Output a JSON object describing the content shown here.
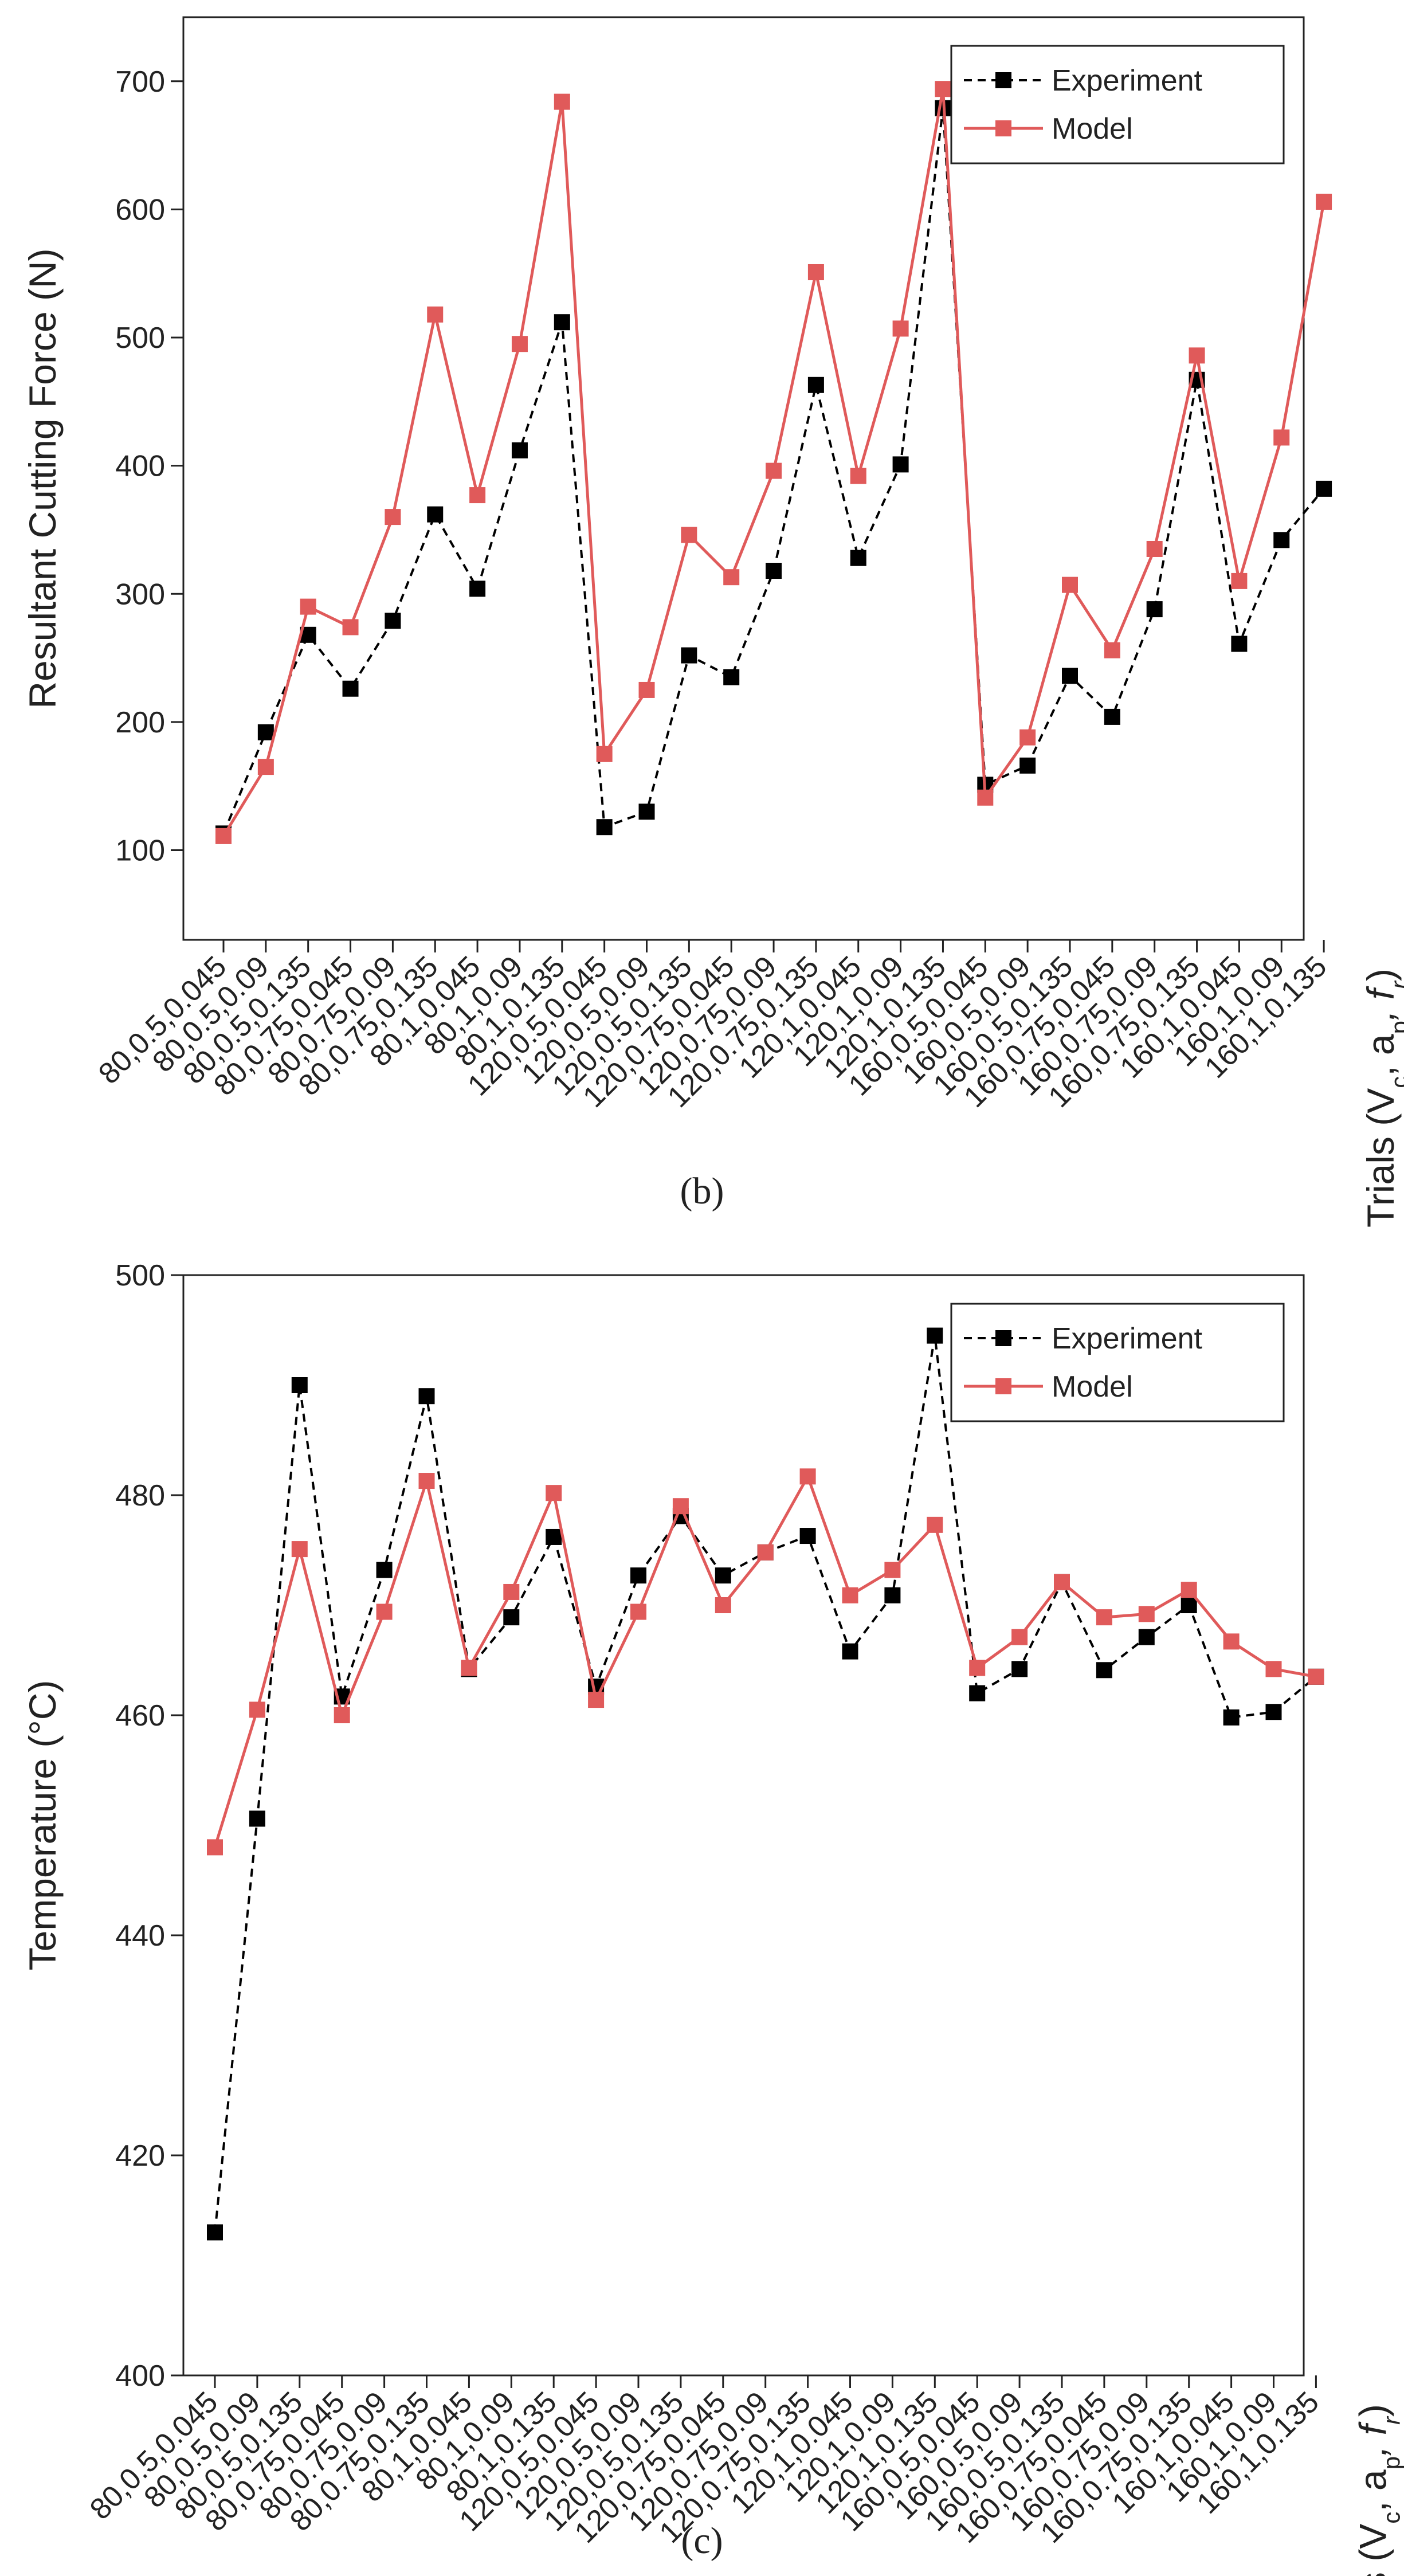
{
  "chart_data": [
    {
      "panel": "b",
      "caption": "(b)",
      "type": "line",
      "ylabel": "Resultant Cutting Force (N)",
      "xlabel": "Trials (V_c, a_p, f_r)",
      "xlabel_parts": {
        "prefix": "Trials (V",
        "s1": "c",
        "m1": ", a",
        "s2": "p",
        "m2": ", f",
        "s3": "r",
        "suffix": ")"
      },
      "ylim": [
        30,
        750
      ],
      "yticks": [
        100,
        200,
        300,
        400,
        500,
        600,
        700
      ],
      "grid": false,
      "legend_position": "top-right",
      "categories": [
        "80,0.5,0.045",
        "80,0.5,0.09",
        "80,0.5,0.135",
        "80,0.75,0.045",
        "80,0.75,0.09",
        "80,0.75,0.135",
        "80,1,0.045",
        "80,1,0.09",
        "80,1,0.135",
        "120,0.5,0.045",
        "120,0.5,0.09",
        "120,0.5,0.135",
        "120,0.75,0.045",
        "120,0.75,0.09",
        "120,0.75,0.135",
        "120,1,0.045",
        "120,1,0.09",
        "120,1,0.135",
        "160,0.5,0.045",
        "160,0.5,0.09",
        "160,0.5,0.135",
        "160,0.75,0.045",
        "160,0.75,0.09",
        "160,0.75,0.135",
        "160,1,0.045",
        "160,1,0.09",
        "160,1,0.135"
      ],
      "series": [
        {
          "name": "Experiment",
          "color": "#000000",
          "dashed": true,
          "values": [
            113,
            192,
            268,
            226,
            279,
            362,
            304,
            412,
            512,
            118,
            130,
            252,
            235,
            318,
            463,
            328,
            401,
            679,
            151,
            166,
            236,
            204,
            288,
            467,
            261,
            342,
            382
          ]
        },
        {
          "name": "Model",
          "color": "#e05a5a",
          "dashed": false,
          "values": [
            111,
            165,
            290,
            274,
            360,
            518,
            377,
            495,
            684,
            175,
            225,
            346,
            313,
            396,
            551,
            392,
            507,
            694,
            141,
            188,
            307,
            256,
            335,
            486,
            310,
            422,
            606
          ]
        }
      ]
    },
    {
      "panel": "c",
      "caption": "(c)",
      "type": "line",
      "ylabel": "Temperature (°C)",
      "xlabel": "Trials (V_c, a_p, f_r)",
      "xlabel_parts": {
        "prefix": "Trials (V",
        "s1": "c",
        "m1": ", a",
        "s2": "p",
        "m2": ", f",
        "s3": "r",
        "suffix": ")"
      },
      "ylim": [
        400,
        500
      ],
      "yticks": [
        400,
        420,
        440,
        460,
        480,
        500
      ],
      "grid": false,
      "legend_position": "top-right",
      "categories": [
        "80,0.5,0.045",
        "80,0.5,0.09",
        "80,0.5,0.135",
        "80,0.75,0.045",
        "80,0.75,0.09",
        "80,0.75,0.135",
        "80,1,0.045",
        "80,1,0.09",
        "80,1,0.135",
        "120,0.5,0.045",
        "120,0.5,0.09",
        "120,0.5,0.135",
        "120,0.75,0.045",
        "120,0.75,0.09",
        "120,0.75,0.135",
        "120,1,0.045",
        "120,1,0.09",
        "120,1,0.135",
        "160,0.5,0.045",
        "160,0.5,0.09",
        "160,0.5,0.135",
        "160,0.75,0.045",
        "160,0.75,0.09",
        "160,0.75,0.135",
        "160,1,0.045",
        "160,1,0.09",
        "160,1,0.135"
      ],
      "series": [
        {
          "name": "Experiment",
          "color": "#000000",
          "dashed": true,
          "values": [
            413,
            450.6,
            490,
            461.7,
            473.2,
            489,
            464.2,
            468.9,
            476.2,
            462.6,
            472.7,
            478.1,
            472.7,
            474.8,
            476.3,
            465.8,
            470.9,
            494.5,
            462,
            464.2,
            472.1,
            464.1,
            467.1,
            470,
            459.8,
            460.3,
            463.5
          ]
        },
        {
          "name": "Model",
          "color": "#e05a5a",
          "dashed": false,
          "values": [
            448,
            460.5,
            475.1,
            460,
            469.4,
            481.3,
            464.3,
            471.2,
            480.2,
            461.4,
            469.4,
            479,
            470,
            474.8,
            481.7,
            470.9,
            473.2,
            477.3,
            464.3,
            467.1,
            472.1,
            468.9,
            469.2,
            471.4,
            466.7,
            464.2,
            463.5
          ]
        }
      ]
    }
  ]
}
